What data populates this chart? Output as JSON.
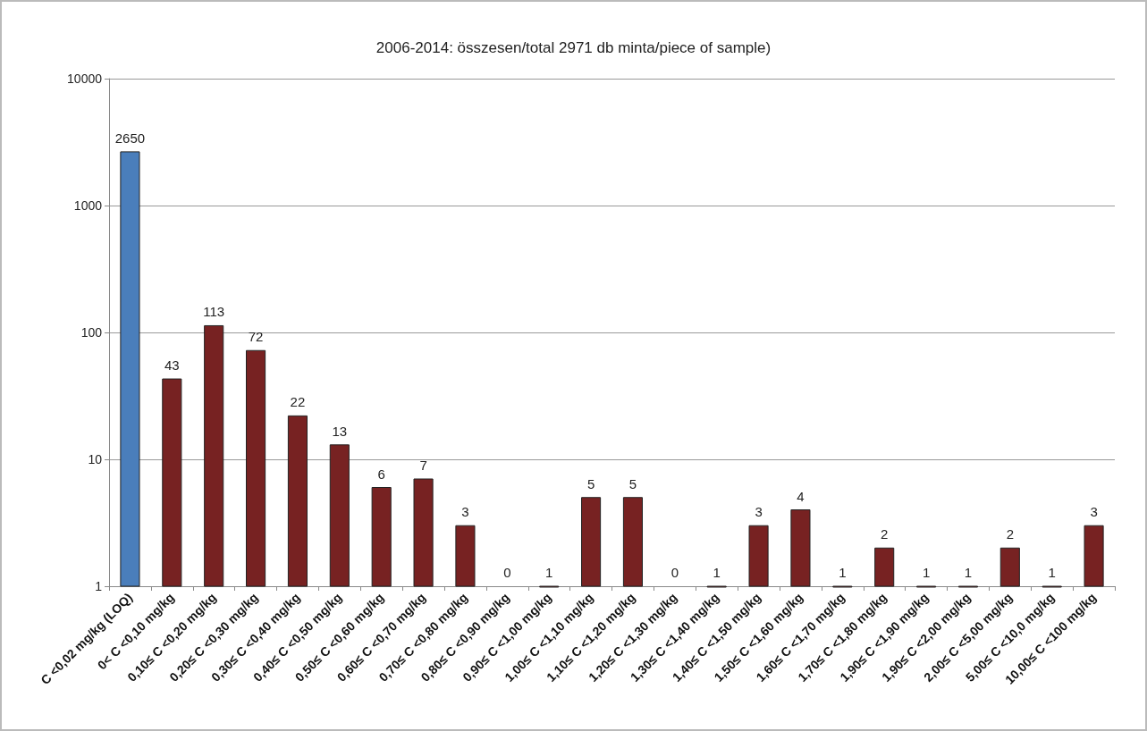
{
  "chart_data": {
    "type": "bar",
    "title": "2006-2014: összesen/total 2971 db minta/piece of sample)",
    "categories": [
      "C <0,02 mg/kg (LOQ)",
      "0< C <0,10 mg/kg",
      "0,10≤ C <0,20 mg/kg",
      "0,20≤ C <0,30 mg/kg",
      "0,30≤ C <0,40 mg/kg",
      "0,40≤ C <0,50 mg/kg",
      "0,50≤ C <0,60 mg/kg",
      "0,60≤ C <0,70 mg/kg",
      "0,70≤ C <0,80 mg/kg",
      "0,80≤ C <0,90 mg/kg",
      "0,90≤ C <1,00 mg/kg",
      "1,00≤ C <1,10 mg/kg",
      "1,10≤ C <1,20 mg/kg",
      "1,20≤ C <1,30 mg/kg",
      "1,30≤ C <1,40 mg/kg",
      "1,40≤ C <1,50 mg/kg",
      "1,50≤ C <1,60 mg/kg",
      "1,60≤ C <1,70 mg/kg",
      "1,70≤ C <1,80 mg/kg",
      "1,90≤ C <1,90 mg/kg",
      "1,90≤ C <2,00 mg/kg",
      "2,00≤ C <5,00 mg/kg",
      "5,00≤ C <10,0 mg/kg",
      "10,00≤ C <100 mg/kg"
    ],
    "values": [
      2650,
      43,
      113,
      72,
      22,
      13,
      6,
      7,
      3,
      null,
      1,
      5,
      5,
      null,
      1,
      3,
      4,
      1,
      2,
      1,
      1,
      2,
      1,
      3
    ],
    "value_labels": [
      "2650",
      "43",
      "113",
      "72",
      "22",
      "13",
      "6",
      "7",
      "3",
      "0",
      "1",
      "5",
      "5",
      "0",
      "1",
      "3",
      "4",
      "1",
      "2",
      "1",
      "1",
      "2",
      "1",
      "3"
    ],
    "colors": [
      "#4a7ebb",
      "#772222",
      "#772222",
      "#772222",
      "#772222",
      "#772222",
      "#772222",
      "#772222",
      "#772222",
      null,
      "#772222",
      "#772222",
      "#772222",
      null,
      "#772222",
      "#772222",
      "#772222",
      "#772222",
      "#772222",
      "#772222",
      "#772222",
      "#772222",
      "#772222",
      "#772222"
    ],
    "log": "y",
    "ylim": [
      1,
      10000
    ],
    "yticks": [
      1,
      10,
      100,
      1000,
      10000
    ],
    "grid": "y"
  }
}
